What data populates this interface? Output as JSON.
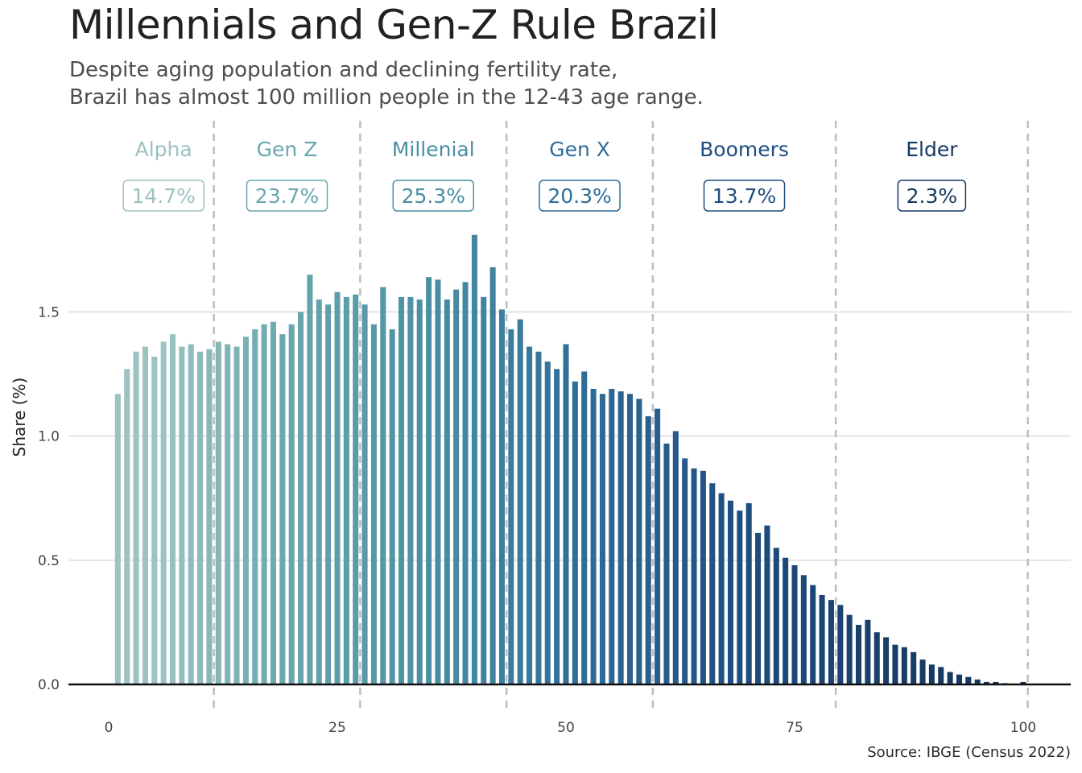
{
  "chart_data": {
    "type": "bar",
    "title": "Millennials and Gen-Z Rule Brazil",
    "subtitle": [
      "Despite aging population and declining fertility rate,",
      "Brazil has almost 100 million people in the 12-43 age range."
    ],
    "ylabel": "Share (%)",
    "xlabel": "",
    "caption": "Source: IBGE (Census 2022)",
    "xlim": [
      -4,
      105
    ],
    "ylim": [
      0,
      1.9
    ],
    "x_ticks": [
      0,
      25,
      50,
      75,
      100
    ],
    "y_ticks": [
      0.0,
      0.5,
      1.0,
      1.5
    ],
    "y_tick_labels": [
      "0.0",
      "0.5",
      "1.0",
      "1.5"
    ],
    "grid": "horizontal",
    "generation_breaks": [
      11.5,
      27.5,
      43.5,
      59.5,
      79.5,
      100.5
    ],
    "generations": [
      {
        "name": "Alpha",
        "share": "14.7%",
        "x": 6,
        "color": "#9cc2c1"
      },
      {
        "name": "Gen Z",
        "share": "23.7%",
        "x": 19.5,
        "color": "#68a7ad"
      },
      {
        "name": "Millenial",
        "share": "25.3%",
        "x": 35.5,
        "color": "#4a8ea3"
      },
      {
        "name": "Gen X",
        "share": "20.3%",
        "x": 51.5,
        "color": "#2f6d98"
      },
      {
        "name": "Boomers",
        "share": "13.7%",
        "x": 69.5,
        "color": "#1f4d80"
      },
      {
        "name": "Elder",
        "share": "2.3%",
        "x": 90,
        "color": "#163a63"
      }
    ],
    "series": [
      {
        "ages": [
          1,
          2,
          3,
          4,
          5,
          6,
          7,
          8,
          9,
          10,
          11,
          12,
          13,
          14,
          15,
          16,
          17,
          18,
          19,
          20,
          21,
          22,
          23,
          24,
          25,
          26,
          27,
          28,
          29,
          30,
          31,
          32,
          33,
          34,
          35,
          36,
          37,
          38,
          39,
          40,
          41,
          42,
          43,
          44,
          45,
          46,
          47,
          48,
          49,
          50,
          51,
          52,
          53,
          54,
          55,
          56,
          57,
          58,
          59,
          60,
          61,
          62,
          63,
          64,
          65,
          66,
          67,
          68,
          69,
          70,
          71,
          72,
          73,
          74,
          75,
          76,
          77,
          78,
          79,
          80,
          81,
          82,
          83,
          84,
          85,
          86,
          87,
          88,
          89,
          90,
          91,
          92,
          93,
          94,
          95,
          96,
          97,
          98,
          99,
          100
        ],
        "values": [
          1.17,
          1.27,
          1.34,
          1.36,
          1.32,
          1.38,
          1.41,
          1.36,
          1.37,
          1.34,
          1.35,
          1.38,
          1.37,
          1.36,
          1.4,
          1.43,
          1.45,
          1.46,
          1.41,
          1.45,
          1.5,
          1.65,
          1.55,
          1.53,
          1.58,
          1.56,
          1.57,
          1.53,
          1.45,
          1.6,
          1.43,
          1.56,
          1.56,
          1.55,
          1.64,
          1.63,
          1.55,
          1.59,
          1.62,
          1.81,
          1.56,
          1.68,
          1.51,
          1.43,
          1.47,
          1.36,
          1.34,
          1.3,
          1.27,
          1.37,
          1.22,
          1.26,
          1.19,
          1.17,
          1.19,
          1.18,
          1.17,
          1.15,
          1.08,
          1.11,
          0.97,
          1.02,
          0.91,
          0.87,
          0.86,
          0.81,
          0.77,
          0.74,
          0.7,
          0.73,
          0.61,
          0.64,
          0.55,
          0.51,
          0.48,
          0.44,
          0.4,
          0.36,
          0.34,
          0.32,
          0.28,
          0.24,
          0.26,
          0.21,
          0.19,
          0.16,
          0.15,
          0.13,
          0.1,
          0.08,
          0.07,
          0.05,
          0.04,
          0.03,
          0.02,
          0.01,
          0.01,
          0.005,
          0.002,
          0.01
        ]
      }
    ]
  }
}
